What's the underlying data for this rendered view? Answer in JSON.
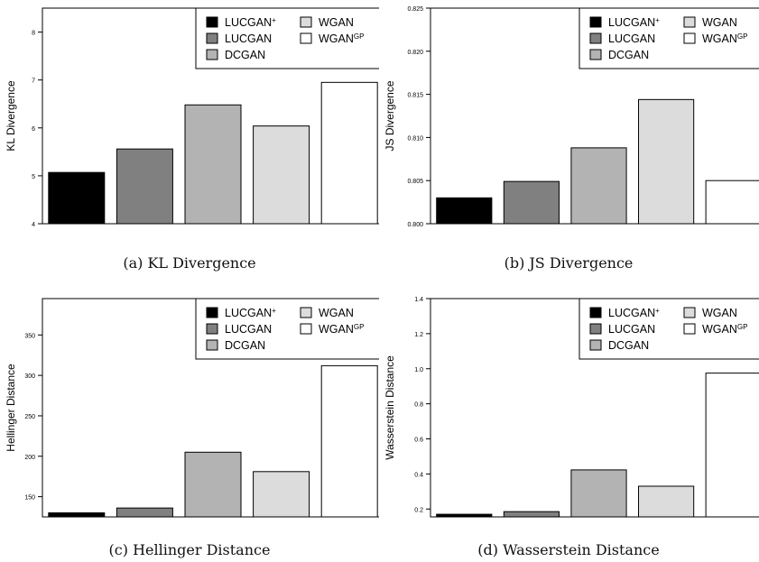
{
  "legend": [
    {
      "name": "LUCGAN",
      "sup": "+",
      "color": "#000000"
    },
    {
      "name": "LUCGAN",
      "sup": "",
      "color": "#808080"
    },
    {
      "name": "DCGAN",
      "sup": "",
      "color": "#b3b3b3"
    },
    {
      "name": "WGAN",
      "sup": "",
      "color": "#dcdcdc"
    },
    {
      "name": "WGAN",
      "sup": "GP",
      "color": "#ffffff"
    }
  ],
  "chart_data": [
    {
      "type": "bar",
      "caption": "(a)  KL Divergence",
      "ylabel": "KL Divergence",
      "categories": [
        "LUCGAN+",
        "LUCGAN",
        "DCGAN",
        "WGAN",
        "WGANGP"
      ],
      "values": [
        5.07,
        5.56,
        6.48,
        6.04,
        6.95
      ],
      "ylim": [
        4,
        8.5
      ],
      "yticks": [
        4,
        5,
        6,
        7,
        8
      ],
      "ytick_labels": [
        "4",
        "5",
        "6",
        "7",
        "8"
      ],
      "legend_position": "top-right"
    },
    {
      "type": "bar",
      "caption": "(b)  JS Divergence",
      "ylabel": "JS Divergence",
      "categories": [
        "LUCGAN+",
        "LUCGAN",
        "DCGAN",
        "WGAN",
        "WGANGP"
      ],
      "values": [
        0.803,
        0.8049,
        0.8088,
        0.8144,
        0.805
      ],
      "ylim": [
        0.8,
        0.825
      ],
      "yticks": [
        0.8,
        0.805,
        0.81,
        0.815,
        0.82,
        0.825
      ],
      "ytick_labels": [
        "0.800",
        "0.805",
        "0.810",
        "0.815",
        "0.820",
        "0.825"
      ],
      "legend_position": "top-right"
    },
    {
      "type": "bar",
      "caption": "(c)  Hellinger Distance",
      "ylabel": "Hellinger  Distance",
      "categories": [
        "LUCGAN+",
        "LUCGAN",
        "DCGAN",
        "WGAN",
        "WGANGP"
      ],
      "values": [
        130,
        136,
        205,
        181,
        312
      ],
      "ylim": [
        125,
        395
      ],
      "yticks": [
        150,
        200,
        250,
        300,
        350
      ],
      "ytick_labels": [
        "150",
        "200",
        "250",
        "300",
        "350"
      ],
      "legend_position": "top-right"
    },
    {
      "type": "bar",
      "caption": "(d)  Wasserstein Distance",
      "ylabel": "Wasserstein Distance",
      "categories": [
        "LUCGAN+",
        "LUCGAN",
        "DCGAN",
        "WGAN",
        "WGANGP"
      ],
      "values": [
        0.17,
        0.185,
        0.423,
        0.33,
        0.975
      ],
      "ylim": [
        0.155,
        1.4
      ],
      "yticks": [
        0.2,
        0.4,
        0.6,
        0.8,
        1.0,
        1.2,
        1.4
      ],
      "ytick_labels": [
        "0.2",
        "0.4",
        "0.6",
        "0.8",
        "1.0",
        "1.2",
        "1.4"
      ],
      "legend_position": "top-right"
    }
  ]
}
